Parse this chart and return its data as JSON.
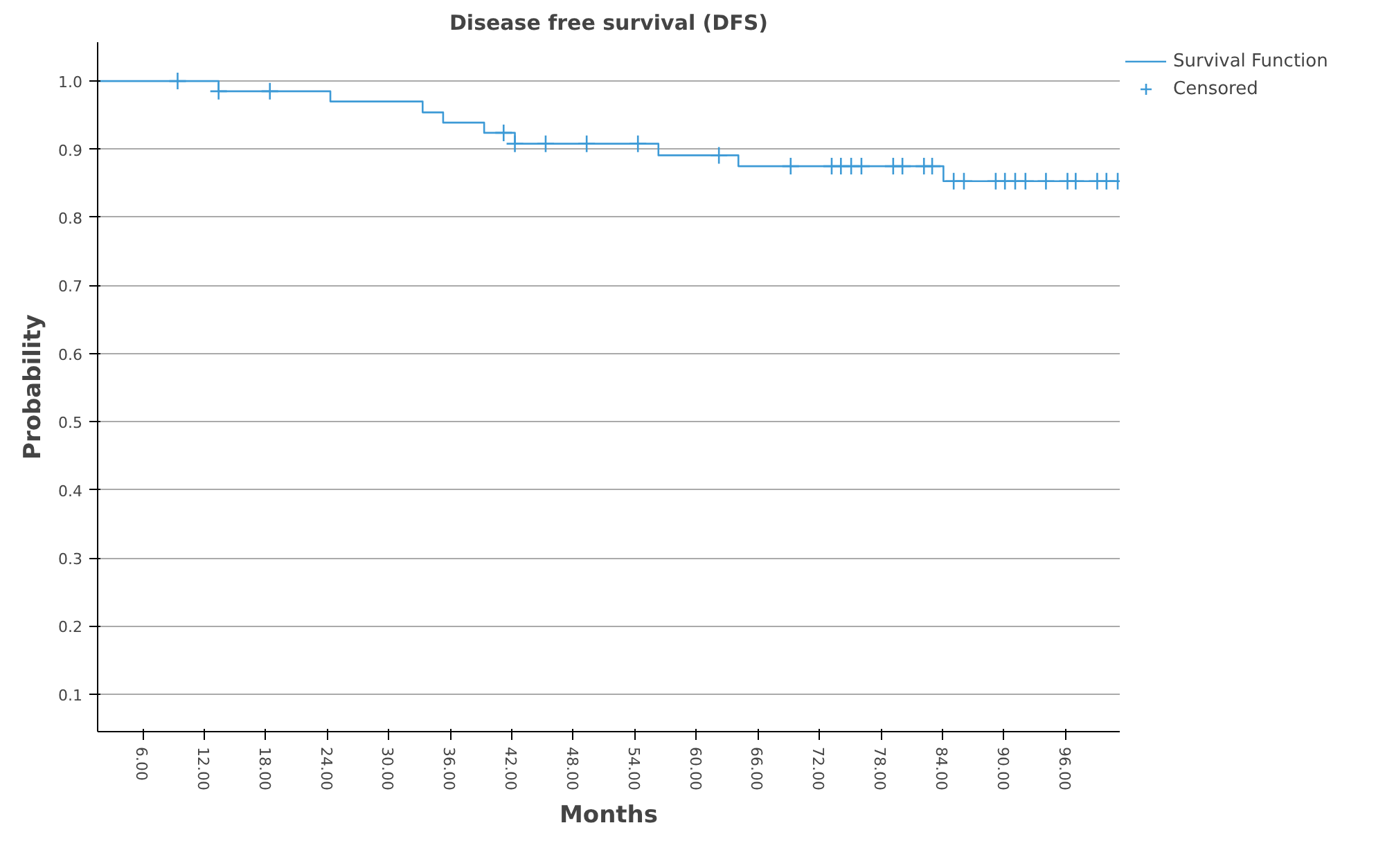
{
  "chart_data": {
    "type": "step",
    "title": "Disease free survival (DFS)",
    "xlabel": "Months",
    "ylabel": "Probability",
    "series": [
      {
        "name": "Survival Function",
        "color": "#3d9ad6",
        "line_style": "solid",
        "x": [
          1.6,
          13.4,
          24.3,
          33.3,
          35.3,
          39.3,
          42.3,
          56.3,
          64.1,
          84.1,
          101.1
        ],
        "values": [
          1.0,
          0.985,
          0.97,
          0.954,
          0.939,
          0.924,
          0.908,
          0.891,
          0.875,
          0.853,
          0.853
        ]
      },
      {
        "name": "Censored",
        "type": "scatter",
        "color": "#3d9ad6",
        "marker": "cross",
        "x": [
          9.4,
          13.4,
          18.4,
          41.2,
          42.3,
          45.3,
          49.3,
          54.3,
          62.2,
          69.2,
          73.2,
          74.1,
          75.1,
          76.1,
          79.2,
          80.1,
          82.2,
          83.0,
          85.1,
          86.1,
          89.2,
          90.1,
          91.1,
          92.1,
          94.1,
          96.2,
          97.0,
          99.1,
          100.0,
          101.1
        ],
        "values": [
          1.0,
          0.985,
          0.985,
          0.924,
          0.908,
          0.908,
          0.908,
          0.908,
          0.891,
          0.875,
          0.875,
          0.875,
          0.875,
          0.875,
          0.875,
          0.875,
          0.875,
          0.875,
          0.853,
          0.853,
          0.853,
          0.853,
          0.853,
          0.853,
          0.853,
          0.853,
          0.853,
          0.853,
          0.853,
          0.853
        ]
      }
    ],
    "xlim": [
      1.6,
      101.3
    ],
    "ylim": [
      0.045,
      1.057
    ],
    "xticks": [
      {
        "value": 6,
        "label": "6.00"
      },
      {
        "value": 12,
        "label": "12.00"
      },
      {
        "value": 18,
        "label": "18.00"
      },
      {
        "value": 24,
        "label": "24.00"
      },
      {
        "value": 30,
        "label": "30.00"
      },
      {
        "value": 36,
        "label": "36.00"
      },
      {
        "value": 42,
        "label": "42.00"
      },
      {
        "value": 48,
        "label": "48.00"
      },
      {
        "value": 54,
        "label": "54.00"
      },
      {
        "value": 60,
        "label": "60.00"
      },
      {
        "value": 66,
        "label": "66.00"
      },
      {
        "value": 72,
        "label": "72.00"
      },
      {
        "value": 78,
        "label": "78.00"
      },
      {
        "value": 84,
        "label": "84.00"
      },
      {
        "value": 90,
        "label": "90.00"
      },
      {
        "value": 96,
        "label": "96.00"
      }
    ],
    "yticks": [
      {
        "value": 0.1,
        "label": "0.1"
      },
      {
        "value": 0.2,
        "label": "0.2"
      },
      {
        "value": 0.3,
        "label": "0.3"
      },
      {
        "value": 0.4,
        "label": "0.4"
      },
      {
        "value": 0.5,
        "label": "0.5"
      },
      {
        "value": 0.6,
        "label": "0.6"
      },
      {
        "value": 0.7,
        "label": "0.7"
      },
      {
        "value": 0.8,
        "label": "0.8"
      },
      {
        "value": 0.9,
        "label": "0.9"
      },
      {
        "value": 1.0,
        "label": "1.0"
      }
    ],
    "grid": "y",
    "legend": "top right"
  }
}
